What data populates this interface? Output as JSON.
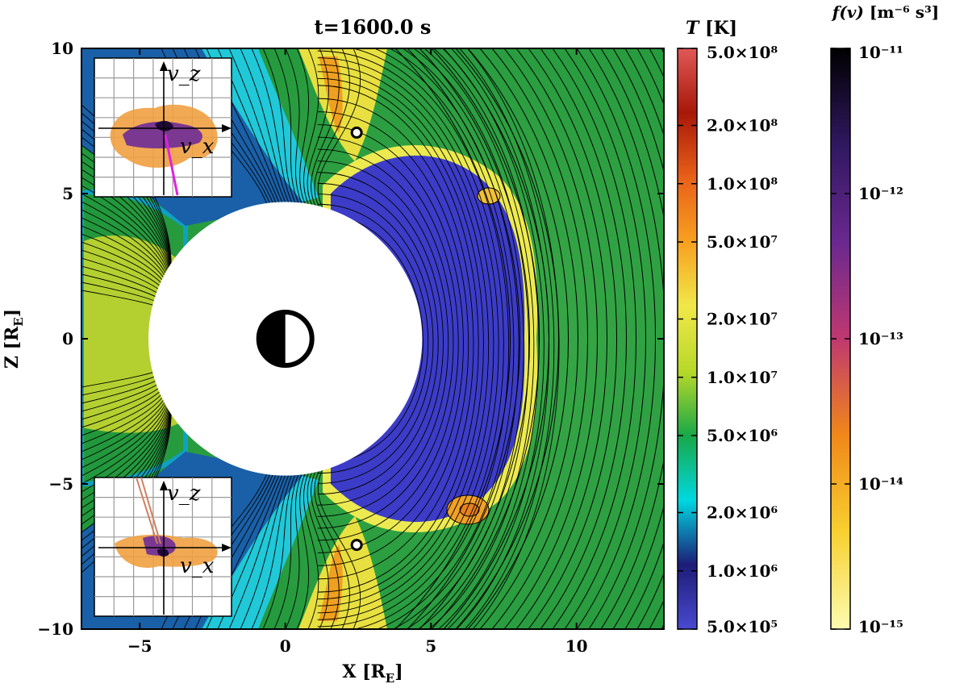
{
  "chart_data": {
    "type": "heatmap",
    "title": "t=1600.0 s",
    "xlabel": "X",
    "xlabel_unit": "E",
    "ylabel": "Z",
    "ylabel_unit": "E",
    "xlim": [
      -7,
      13
    ],
    "ylim": [
      -10,
      10
    ],
    "x_ticks": [
      -5,
      0,
      5,
      10
    ],
    "x_tick_labels": [
      "−5",
      "0",
      "5",
      "10"
    ],
    "y_ticks": [
      -10,
      -5,
      0,
      5,
      10
    ],
    "y_tick_labels": [
      "−10",
      "−5",
      "0",
      "5",
      "10"
    ],
    "inner_boundary_radius": 4.7,
    "markers": [
      {
        "x": 2.45,
        "z": 7.1
      },
      {
        "x": 2.45,
        "z": -7.1
      }
    ],
    "colorbar_T": {
      "label_symbol": "T",
      "label_unit": "[K]",
      "scale": "log",
      "range": [
        500000,
        500000000
      ],
      "tick_values": [
        500000000,
        200000000,
        100000000,
        50000000,
        20000000,
        10000000,
        5000000,
        2000000,
        1000000,
        500000
      ],
      "tick_labels": [
        "5.0×10⁸",
        "2.0×10⁸",
        "1.0×10⁸",
        "5.0×10⁷",
        "2.0×10⁷",
        "1.0×10⁷",
        "5.0×10⁶",
        "2.0×10⁶",
        "1.0×10⁶",
        "5.0×10⁵"
      ],
      "colors": [
        "#4a4ad0",
        "#1c1c78",
        "#00d8e0",
        "#18a848",
        "#b8d828",
        "#f0e848",
        "#f8a020",
        "#e86018",
        "#a81808",
        "#e05858"
      ]
    },
    "colorbar_f": {
      "label_symbol": "f(v)",
      "label_unit": "[m⁻⁶ s³]",
      "scale": "log",
      "range": [
        1e-15,
        1e-11
      ],
      "tick_values": [
        1e-11,
        1e-12,
        1e-13,
        1e-14,
        1e-15
      ],
      "tick_labels": [
        "10⁻¹¹",
        "10⁻¹²",
        "10⁻¹³",
        "10⁻¹⁴",
        "10⁻¹⁵"
      ],
      "colors": [
        "#fcfcb0",
        "#f8d030",
        "#f08818",
        "#c03870",
        "#6a2890",
        "#301860",
        "#000000"
      ]
    },
    "insets": [
      {
        "position": "top-left",
        "axis_x": "v_x",
        "axis_z": "v_z",
        "beam_color": "#e020e0"
      },
      {
        "position": "bottom-left",
        "axis_x": "v_x",
        "axis_z": "v_z",
        "beam_color": "#d08060"
      }
    ]
  }
}
